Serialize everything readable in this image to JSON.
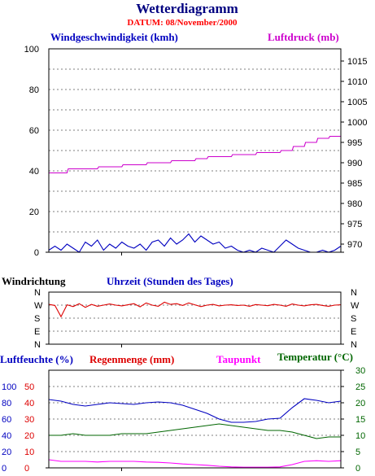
{
  "colors": {
    "title": "#000080",
    "date": "#ff0000",
    "wind": "#0000c0",
    "pressure": "#cc00cc",
    "rain": "#dd0000",
    "dewpoint": "#ff00ff",
    "temperature": "#006600",
    "grid": "#000000"
  },
  "chart_data": [
    {
      "type": "line",
      "title": "Wetterdiagramm",
      "subtitle": "DATUM: 08/November/2000",
      "x_range": [
        0,
        24
      ],
      "grid": "dotted-horizontal",
      "y_left": {
        "label": "Windgeschwindigkeit (kmh)",
        "range": [
          0,
          100
        ],
        "ticks": [
          "0",
          "20",
          "40",
          "60",
          "80",
          "100"
        ]
      },
      "y_right": {
        "label": "Luftdruck (mb)",
        "range": [
          968,
          1018
        ],
        "ticks": [
          "970",
          "975",
          "980",
          "985",
          "990",
          "995",
          "1000",
          "1005",
          "1010",
          "1015"
        ]
      },
      "series": [
        {
          "name": "Windgeschwindigkeit (kmh)",
          "axis": "left",
          "x": [
            0,
            0.5,
            1,
            1.5,
            2,
            2.5,
            3,
            3.5,
            4,
            4.5,
            5,
            5.5,
            6,
            6.5,
            7,
            7.5,
            8,
            8.5,
            9,
            9.5,
            10,
            10.5,
            11,
            11.5,
            12,
            12.5,
            13,
            13.5,
            14,
            14.5,
            15,
            15.5,
            16,
            16.5,
            17,
            17.5,
            18,
            18.5,
            19,
            19.5,
            20,
            20.5,
            21,
            21.5,
            22,
            22.5,
            23,
            23.5,
            24
          ],
          "values": [
            1,
            3,
            1,
            4,
            2,
            0,
            5,
            3,
            6,
            1,
            4,
            2,
            5,
            3,
            2,
            4,
            1,
            5,
            6,
            3,
            7,
            4,
            6,
            9,
            5,
            8,
            6,
            4,
            5,
            2,
            3,
            1,
            0,
            1,
            0,
            2,
            1,
            0,
            3,
            6,
            4,
            2,
            1,
            0,
            0,
            1,
            0,
            1,
            3
          ]
        },
        {
          "name": "Luftdruck (mb)",
          "axis": "right",
          "x": [
            0,
            1.5,
            1.6,
            4,
            4.1,
            6,
            6.1,
            8,
            8.1,
            10,
            10.1,
            12,
            12.1,
            13,
            13.1,
            15,
            15.1,
            17,
            17.1,
            19,
            19.1,
            20,
            20.1,
            21,
            21.1,
            22,
            22.1,
            23,
            23.1,
            24
          ],
          "values": [
            987.5,
            987.5,
            988.5,
            988.5,
            989,
            989,
            989.5,
            989.5,
            990,
            990,
            990.5,
            990.5,
            991,
            991,
            991.5,
            991.5,
            992,
            992,
            992.5,
            992.5,
            993,
            993,
            994,
            994,
            995,
            995,
            996,
            996,
            996.5,
            996.5
          ]
        }
      ]
    },
    {
      "type": "line",
      "x_range": [
        0,
        24
      ],
      "xlabel": "Uhrzeit (Stunden des Tages)",
      "ylabel": "Windrichtung",
      "y_categories": [
        "N",
        "W",
        "S",
        "E",
        "N"
      ],
      "series": [
        {
          "name": "Windrichtung",
          "x": [
            0,
            0.5,
            1,
            1.5,
            2,
            2.5,
            3,
            3.5,
            4,
            4.5,
            5,
            5.5,
            6,
            6.5,
            7,
            7.5,
            8,
            8.5,
            9,
            9.5,
            10,
            10.5,
            11,
            11.5,
            12,
            12.5,
            13,
            13.5,
            14,
            14.5,
            15,
            15.5,
            16,
            16.5,
            17,
            17.5,
            18,
            18.5,
            19,
            19.5,
            20,
            20.5,
            21,
            21.5,
            22,
            22.5,
            23,
            23.5,
            24
          ],
          "values": [
            275,
            268,
            190,
            272,
            260,
            280,
            255,
            275,
            262,
            270,
            278,
            270,
            265,
            272,
            280,
            258,
            285,
            270,
            262,
            290,
            275,
            280,
            268,
            285,
            272,
            260,
            270,
            275,
            265,
            270,
            272,
            268,
            270,
            262,
            274,
            270,
            266,
            275,
            270,
            262,
            278,
            270,
            265,
            272,
            275,
            268,
            262,
            270,
            272
          ]
        }
      ]
    },
    {
      "type": "line",
      "x_range": [
        0,
        24
      ],
      "y_axes": [
        {
          "label": "Luftfeuchte (%)",
          "range": [
            0,
            120
          ],
          "ticks": [
            "0",
            "20",
            "40",
            "60",
            "80",
            "100"
          ]
        },
        {
          "label": "Regenmenge (mm)",
          "range": [
            0,
            60
          ],
          "ticks": [
            "0",
            "10",
            "20",
            "30",
            "40",
            "50"
          ]
        },
        {
          "label": "Temperatur (°C)",
          "range": [
            0,
            30
          ],
          "ticks": [
            "0",
            "5",
            "10",
            "15",
            "20",
            "25",
            "30"
          ]
        }
      ],
      "extra_label": "Taupunkt",
      "series": [
        {
          "name": "Luftfeuchte (%)",
          "axis": 0,
          "x": [
            0,
            1,
            2,
            3,
            4,
            5,
            6,
            7,
            8,
            9,
            10,
            11,
            12,
            13,
            14,
            15,
            16,
            17,
            18,
            19,
            20,
            21,
            22,
            23,
            24
          ],
          "values": [
            84,
            82,
            78,
            76,
            78,
            80,
            79,
            78,
            80,
            81,
            80,
            77,
            72,
            67,
            60,
            56,
            56,
            57,
            60,
            61,
            74,
            85,
            83,
            80,
            82
          ]
        },
        {
          "name": "Taupunkt",
          "axis": 2,
          "x": [
            0,
            1,
            2,
            3,
            4,
            5,
            6,
            7,
            8,
            9,
            10,
            11,
            12,
            13,
            14,
            15,
            16,
            17,
            18,
            19,
            20,
            21,
            22,
            23,
            24
          ],
          "values": [
            2.5,
            2,
            2,
            2,
            1.8,
            2,
            2,
            2,
            1.8,
            1.7,
            1.5,
            1.2,
            1,
            0.8,
            0.5,
            0.3,
            0.2,
            0.2,
            0.2,
            0.3,
            1,
            2,
            2.2,
            2,
            2.2
          ]
        },
        {
          "name": "Temperatur (°C)",
          "axis": 2,
          "x": [
            0,
            1,
            2,
            3,
            4,
            5,
            6,
            7,
            8,
            9,
            10,
            11,
            12,
            13,
            14,
            15,
            16,
            17,
            18,
            19,
            20,
            21,
            22,
            23,
            24
          ],
          "values": [
            10,
            10,
            10.5,
            10,
            10,
            10,
            10.5,
            10.5,
            10.5,
            11,
            11.5,
            12,
            12.5,
            13,
            13.5,
            13,
            12.5,
            12,
            11.5,
            11.5,
            11,
            10,
            9,
            9.5,
            9.5
          ]
        },
        {
          "name": "Regenmenge (mm)",
          "axis": 1,
          "x": [
            0,
            24
          ],
          "values": [
            0,
            0
          ]
        }
      ]
    }
  ]
}
